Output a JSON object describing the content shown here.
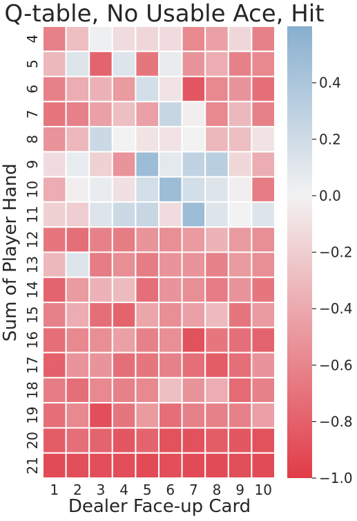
{
  "chart_data": {
    "type": "heatmap",
    "title": "Q-table, No Usable Ace, Hit",
    "xlabel": "Dealer Face-up Card",
    "ylabel": "Sum of Player Hand",
    "x_categories": [
      "1",
      "2",
      "3",
      "4",
      "5",
      "6",
      "7",
      "8",
      "9",
      "10"
    ],
    "y_categories": [
      "4",
      "5",
      "6",
      "7",
      "8",
      "9",
      "10",
      "11",
      "12",
      "13",
      "14",
      "15",
      "16",
      "17",
      "18",
      "19",
      "20",
      "21"
    ],
    "values": [
      [
        -0.62,
        -0.28,
        0.03,
        -0.12,
        -0.15,
        -0.12,
        -0.58,
        -0.45,
        -0.15,
        -0.62
      ],
      [
        -0.32,
        0.12,
        -0.78,
        0.12,
        -0.68,
        0.05,
        -0.52,
        -0.38,
        -0.62,
        -0.58
      ],
      [
        -0.62,
        -0.38,
        -0.35,
        -0.48,
        0.18,
        -0.08,
        -0.85,
        -0.58,
        -0.52,
        -0.72
      ],
      [
        -0.68,
        -0.62,
        -0.45,
        -0.28,
        -0.45,
        0.25,
        -0.02,
        -0.58,
        -0.32,
        -0.62
      ],
      [
        -0.52,
        -0.32,
        0.22,
        0.0,
        -0.08,
        -0.08,
        0.0,
        -0.32,
        -0.28,
        -0.08
      ],
      [
        -0.12,
        0.05,
        -0.18,
        -0.52,
        0.48,
        0.08,
        0.28,
        0.32,
        -0.15,
        -0.38
      ],
      [
        -0.38,
        -0.02,
        0.05,
        -0.1,
        0.18,
        0.48,
        0.18,
        0.12,
        -0.02,
        -0.65
      ],
      [
        -0.18,
        -0.2,
        0.12,
        0.22,
        0.25,
        -0.12,
        0.48,
        0.12,
        0.0,
        0.12
      ],
      [
        -0.68,
        -0.72,
        -0.62,
        -0.65,
        -0.52,
        -0.55,
        -0.48,
        -0.35,
        -0.48,
        -0.55
      ],
      [
        -0.32,
        0.12,
        -0.65,
        -0.55,
        -0.65,
        -0.52,
        -0.52,
        -0.62,
        -0.48,
        -0.55
      ],
      [
        -0.78,
        -0.48,
        -0.35,
        -0.3,
        -0.72,
        -0.52,
        -0.55,
        -0.65,
        -0.52,
        -0.68
      ],
      [
        -0.62,
        -0.38,
        -0.72,
        -0.78,
        -0.42,
        -0.55,
        -0.45,
        -0.3,
        -0.68,
        -0.48
      ],
      [
        -0.72,
        -0.58,
        -0.55,
        -0.45,
        -0.62,
        -0.55,
        -0.88,
        -0.68,
        -0.72,
        -0.78
      ],
      [
        -0.8,
        -0.52,
        -0.52,
        -0.72,
        -0.68,
        -0.62,
        -0.72,
        -0.82,
        -0.72,
        -0.52
      ],
      [
        -0.65,
        -0.72,
        -0.58,
        -0.62,
        -0.58,
        -0.28,
        -0.52,
        -0.38,
        -0.75,
        -0.62
      ],
      [
        -0.72,
        -0.58,
        -0.9,
        -0.68,
        -0.48,
        -0.72,
        -0.62,
        -0.62,
        -0.62,
        -0.45
      ],
      [
        -0.82,
        -0.72,
        -0.78,
        -0.85,
        -0.78,
        -0.88,
        -0.88,
        -0.82,
        -0.85,
        -0.88
      ],
      [
        -0.92,
        -0.9,
        -0.9,
        -0.9,
        -0.92,
        -0.9,
        -0.92,
        -0.92,
        -0.9,
        -0.92
      ]
    ],
    "zlim": [
      -1.0,
      0.6
    ],
    "colorbar_ticks": [
      -1.0,
      -0.8,
      -0.6,
      -0.4,
      -0.2,
      0.0,
      0.2,
      0.4
    ],
    "colorbar_tick_labels": [
      "−1.0",
      "−0.8",
      "−0.6",
      "−0.4",
      "−0.2",
      "0.0",
      "0.2",
      "0.4"
    ],
    "colors": {
      "low": "#e03c48",
      "mid": "#f2f2f2",
      "high": "#88afcf",
      "cell_border": "#ffffff"
    },
    "legend": "right colorbar",
    "grid": false
  }
}
